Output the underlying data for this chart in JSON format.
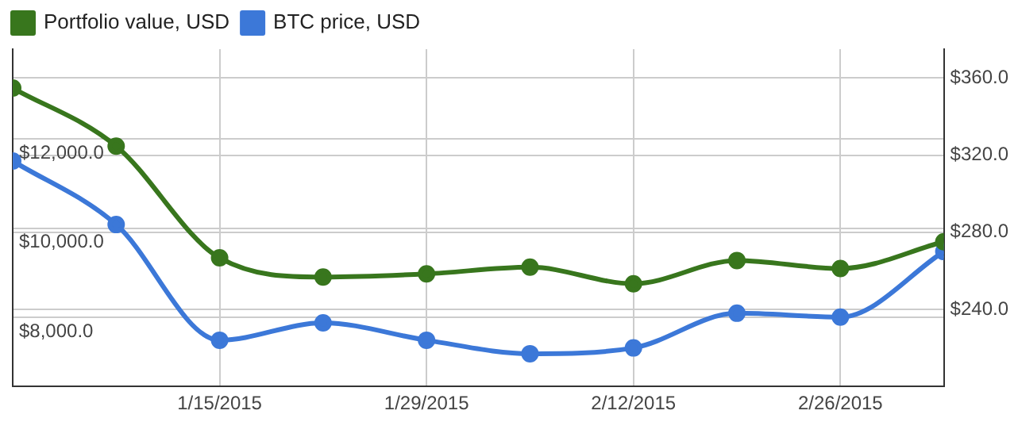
{
  "chart_data": {
    "type": "line",
    "x": [
      "2015-01-01",
      "2015-01-08",
      "2015-01-15",
      "2015-01-22",
      "2015-01-29",
      "2015-02-05",
      "2015-02-12",
      "2015-02-19",
      "2015-02-26",
      "2015-03-05"
    ],
    "series": [
      {
        "name": "Portfolio value, USD",
        "color": "#38761d",
        "values": [
          13140,
          11840,
          9340,
          8910,
          8980,
          9130,
          8760,
          9280,
          9100,
          9700
        ]
      },
      {
        "name": "BTC price, USD",
        "color": "#3c78d8",
        "axis": "y2",
        "values": [
          317,
          284,
          224,
          233,
          224,
          217,
          220,
          238,
          236,
          270
        ]
      }
    ],
    "xlim": [
      "2015-01-01",
      "2015-03-05"
    ],
    "xticks": [
      {
        "value": "2015-01-15",
        "label": "1/15/2015"
      },
      {
        "value": "2015-01-29",
        "label": "1/29/2015"
      },
      {
        "value": "2015-02-12",
        "label": "2/12/2015"
      },
      {
        "value": "2015-02-26",
        "label": "2/26/2015"
      }
    ],
    "ylim": [
      6460,
      14010
    ],
    "yticks": [
      {
        "value": 8000,
        "label": "$8,000.0"
      },
      {
        "value": 10000,
        "label": "$10,000.0"
      },
      {
        "value": 12000,
        "label": "$12,000.0"
      }
    ],
    "y2lim": [
      200,
      375
    ],
    "y2ticks": [
      {
        "value": 240,
        "label": "$240.0"
      },
      {
        "value": 280,
        "label": "$280.0"
      },
      {
        "value": 320,
        "label": "$320.0"
      },
      {
        "value": 360,
        "label": "$360.0"
      }
    ],
    "grid": true,
    "legend": "top left",
    "marker": "circle",
    "line_style": "solid"
  }
}
